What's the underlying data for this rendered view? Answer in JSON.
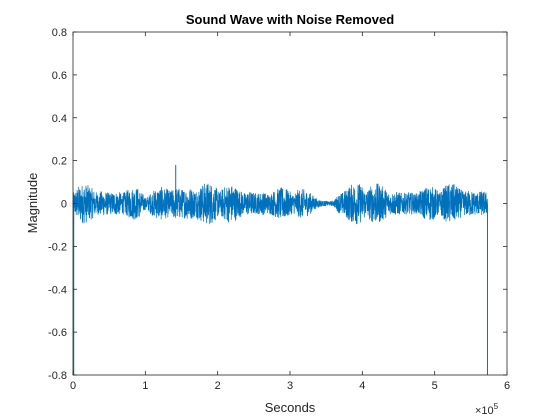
{
  "chart_data": {
    "type": "line",
    "title": "Sound Wave with Noise Removed",
    "xlabel": "Seconds",
    "ylabel": "Magnitude",
    "x_exponent_label": {
      "base": "×10",
      "exponent": "5"
    },
    "xlim": [
      0,
      6
    ],
    "ylim": [
      -0.8,
      0.8
    ],
    "x_ticks": [
      0,
      1,
      2,
      3,
      4,
      5,
      6
    ],
    "y_ticks": [
      -0.8,
      -0.6,
      -0.4,
      -0.2,
      0,
      0.2,
      0.4,
      0.6,
      0.8
    ],
    "y_tick_labels": [
      "-0.8",
      "-0.6",
      "-0.4",
      "-0.2",
      "0",
      "0.2",
      "0.4",
      "0.6",
      "0.8"
    ],
    "grid": false,
    "line_color": "#0072BD",
    "x_end": 5.73,
    "envelope": {
      "x": [
        0,
        0.1,
        0.5,
        0.9,
        1.0,
        1.3,
        1.42,
        1.6,
        2.0,
        2.4,
        2.8,
        3.1,
        3.3,
        3.45,
        3.6,
        3.7,
        4.0,
        4.4,
        4.8,
        5.0,
        5.2,
        5.4,
        5.73
      ],
      "amplitude": [
        0.09,
        0.1,
        0.09,
        0.08,
        0.05,
        0.1,
        0.12,
        0.12,
        0.1,
        0.09,
        0.08,
        0.08,
        0.06,
        0.02,
        0.02,
        0.09,
        0.11,
        0.09,
        0.08,
        0.09,
        0.1,
        0.1,
        0.09
      ]
    },
    "spikes": [
      {
        "x": 0.01,
        "y": -0.8
      },
      {
        "x": 1.42,
        "y": 0.18
      },
      {
        "x": 5.73,
        "y": -0.8
      }
    ]
  }
}
